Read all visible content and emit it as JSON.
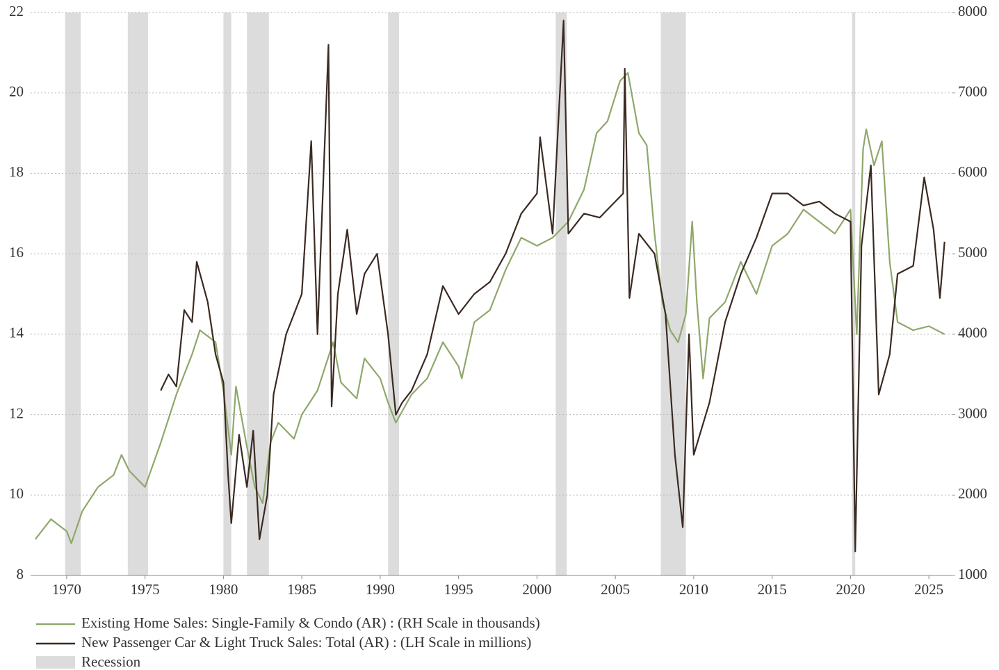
{
  "chart_data": {
    "type": "line",
    "xlim": [
      1967.7,
      2026.5
    ],
    "xticks": [
      1970,
      1975,
      1980,
      1985,
      1990,
      1995,
      2000,
      2005,
      2010,
      2015,
      2020,
      2025
    ],
    "ylim": [
      8,
      22
    ],
    "yticks": [
      8,
      10,
      12,
      14,
      16,
      18,
      20,
      22
    ],
    "y2lim": [
      1000,
      8000
    ],
    "y2ticks": [
      1000,
      2000,
      3000,
      4000,
      5000,
      6000,
      7000,
      8000
    ],
    "grid": true,
    "recessions": {
      "name": "Recession",
      "color": "#dcdcdc",
      "spans": [
        [
          1969.9,
          1970.9
        ],
        [
          1973.9,
          1975.2
        ],
        [
          1980.0,
          1980.5
        ],
        [
          1981.5,
          1982.9
        ],
        [
          1990.5,
          1991.2
        ],
        [
          2001.2,
          2001.9
        ],
        [
          2007.9,
          2009.5
        ],
        [
          2020.1,
          2020.3
        ]
      ]
    },
    "series": [
      {
        "name": "Existing Home Sales: Single-Family & Condo (AR) : (RH Scale in thousands)",
        "color": "#8fa86b",
        "axis": "y2",
        "x": [
          1968.0,
          1969.0,
          1970.0,
          1970.3,
          1971.0,
          1972.0,
          1973.0,
          1973.5,
          1974.0,
          1975.0,
          1976.0,
          1977.0,
          1978.0,
          1978.5,
          1979.5,
          1980.0,
          1980.5,
          1980.8,
          1981.5,
          1982.0,
          1982.5,
          1983.0,
          1983.5,
          1984.5,
          1985.0,
          1986.0,
          1987.0,
          1987.5,
          1988.5,
          1989.0,
          1990.0,
          1990.5,
          1991.0,
          1992.0,
          1993.0,
          1994.0,
          1995.0,
          1995.2,
          1996.0,
          1997.0,
          1998.0,
          1999.0,
          2000.0,
          2001.0,
          2002.0,
          2003.0,
          2003.8,
          2004.5,
          2005.3,
          2005.8,
          2006.5,
          2007.0,
          2007.5,
          2008.0,
          2008.5,
          2009.0,
          2009.5,
          2009.9,
          2010.2,
          2010.6,
          2011.0,
          2012.0,
          2013.0,
          2014.0,
          2015.0,
          2016.0,
          2017.0,
          2018.0,
          2019.0,
          2020.0,
          2020.4,
          2020.8,
          2021.0,
          2021.5,
          2022.0,
          2022.5,
          2023.0,
          2024.0,
          2025.0,
          2026.0
        ],
        "values": [
          1450,
          1700,
          1550,
          1400,
          1800,
          2100,
          2250,
          2500,
          2300,
          2100,
          2650,
          3250,
          3750,
          4050,
          3900,
          3300,
          2500,
          3350,
          2600,
          2100,
          1900,
          2650,
          2900,
          2700,
          3000,
          3300,
          3900,
          3400,
          3200,
          3700,
          3450,
          3150,
          2900,
          3250,
          3450,
          3900,
          3600,
          3450,
          4150,
          4300,
          4800,
          5200,
          5100,
          5200,
          5400,
          5800,
          6500,
          6650,
          7150,
          7250,
          6500,
          6350,
          5250,
          4400,
          4050,
          3900,
          4250,
          5400,
          4400,
          3450,
          4200,
          4400,
          4900,
          4500,
          5100,
          5250,
          5550,
          5400,
          5250,
          5550,
          4000,
          6300,
          6550,
          6100,
          6400,
          4900,
          4150,
          4050,
          4100,
          4000
        ]
      },
      {
        "name": "New Passenger Car & Light Truck Sales: Total (AR) : (LH Scale in millions)",
        "color": "#3a2a22",
        "axis": "y",
        "x": [
          1976.0,
          1976.5,
          1977.0,
          1977.5,
          1978.0,
          1978.3,
          1979.0,
          1979.5,
          1980.0,
          1980.3,
          1980.5,
          1981.0,
          1981.5,
          1981.9,
          1982.3,
          1982.8,
          1983.2,
          1984.0,
          1984.5,
          1985.0,
          1985.6,
          1986.0,
          1986.7,
          1986.9,
          1987.3,
          1987.9,
          1988.5,
          1989.0,
          1989.8,
          1990.5,
          1991.0,
          1991.4,
          1992.0,
          1993.0,
          1994.0,
          1995.0,
          1996.0,
          1997.0,
          1998.0,
          1999.0,
          2000.0,
          2000.2,
          2001.0,
          2001.7,
          2002.0,
          2003.0,
          2004.0,
          2005.5,
          2005.6,
          2005.9,
          2006.5,
          2007.5,
          2008.2,
          2008.8,
          2009.3,
          2009.7,
          2010.0,
          2011.0,
          2012.0,
          2013.0,
          2014.0,
          2015.0,
          2016.0,
          2017.0,
          2018.0,
          2019.0,
          2020.0,
          2020.3,
          2020.7,
          2021.3,
          2021.8,
          2022.5,
          2023.0,
          2024.0,
          2024.7,
          2025.3,
          2025.7,
          2026.0
        ],
        "values": [
          12.6,
          13.0,
          12.7,
          14.6,
          14.3,
          15.8,
          14.8,
          13.5,
          12.8,
          10.5,
          9.3,
          11.5,
          10.2,
          11.6,
          8.9,
          10.0,
          12.5,
          14.0,
          14.5,
          15.0,
          18.8,
          14.0,
          21.2,
          12.2,
          15.0,
          16.6,
          14.5,
          15.5,
          16.0,
          14.0,
          12.0,
          12.3,
          12.6,
          13.5,
          15.2,
          14.5,
          15.0,
          15.3,
          16.0,
          17.0,
          17.5,
          18.9,
          16.5,
          21.8,
          16.5,
          17.0,
          16.9,
          17.5,
          20.6,
          14.9,
          16.5,
          16.0,
          14.5,
          11.0,
          9.2,
          14.0,
          11.0,
          12.3,
          14.3,
          15.5,
          16.4,
          17.5,
          17.5,
          17.2,
          17.3,
          17.0,
          16.8,
          8.6,
          16.2,
          18.2,
          12.5,
          13.5,
          15.5,
          15.7,
          17.9,
          16.6,
          14.9,
          16.3
        ]
      }
    ]
  }
}
